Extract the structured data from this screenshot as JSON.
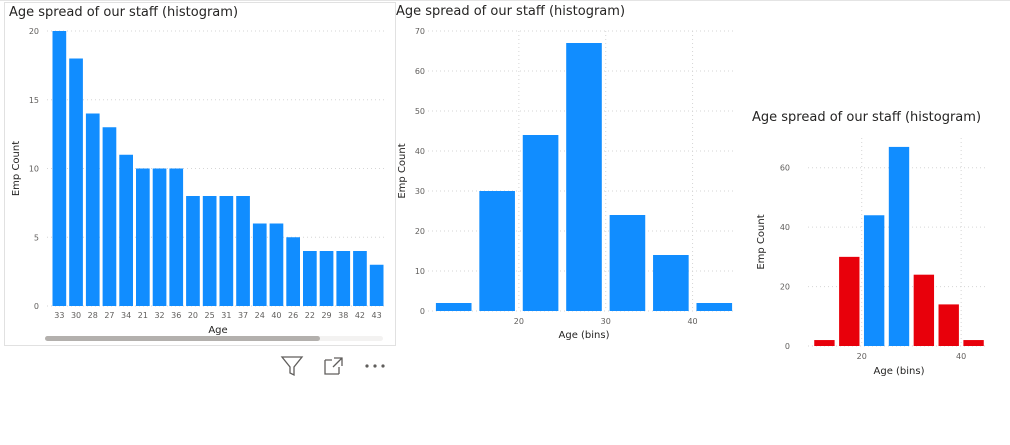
{
  "colors": {
    "bar_blue": "#118DFF",
    "bar_red": "#E8000B",
    "grid": "#d6d6d6",
    "text": "#605e5c"
  },
  "icons": {
    "filter": "filter-icon",
    "focus": "focus-mode-icon",
    "more": "more-options-icon"
  },
  "visuals": [
    {
      "title": "Age spread of our staff (histogram)",
      "chart_data": {
        "type": "bar",
        "title": "Age spread of our staff (histogram)",
        "xlabel": "Age",
        "ylabel": "Emp Count",
        "categories": [
          "33",
          "30",
          "28",
          "27",
          "34",
          "21",
          "32",
          "36",
          "20",
          "25",
          "31",
          "37",
          "24",
          "40",
          "26",
          "22",
          "29",
          "38",
          "42",
          "43"
        ],
        "values": [
          20,
          18,
          14,
          13,
          11,
          10,
          10,
          10,
          8,
          8,
          8,
          8,
          6,
          6,
          5,
          4,
          4,
          4,
          4,
          3
        ],
        "ylim": [
          0,
          20
        ],
        "yticks": [
          0,
          5,
          10,
          15,
          20
        ],
        "grid": true
      }
    },
    {
      "title": "Age spread of our staff (histogram)",
      "chart_data": {
        "type": "bar",
        "title": "Age spread of our staff (histogram)",
        "xlabel": "Age (bins)",
        "ylabel": "Emp Count",
        "x": [
          15,
          20,
          25,
          30,
          35,
          40,
          45
        ],
        "values": [
          2,
          30,
          44,
          67,
          24,
          14,
          2
        ],
        "xticks": [
          20,
          30,
          40
        ],
        "ylim": [
          0,
          70
        ],
        "yticks": [
          0,
          10,
          20,
          30,
          40,
          50,
          60,
          70
        ],
        "grid": true
      }
    },
    {
      "title": "Age spread of our staff (histogram)",
      "chart_data": {
        "type": "bar",
        "title": "Age spread of our staff (histogram)",
        "xlabel": "Age (bins)",
        "ylabel": "Emp Count",
        "x": [
          15,
          20,
          25,
          30,
          35,
          40,
          45
        ],
        "values": [
          2,
          30,
          44,
          67,
          24,
          14,
          2
        ],
        "colors": [
          "red",
          "red",
          "blue",
          "blue",
          "red",
          "red",
          "red"
        ],
        "xticks": [
          20,
          40
        ],
        "ylim": [
          0,
          70
        ],
        "yticks": [
          0,
          20,
          40,
          60
        ],
        "grid": true
      }
    }
  ]
}
